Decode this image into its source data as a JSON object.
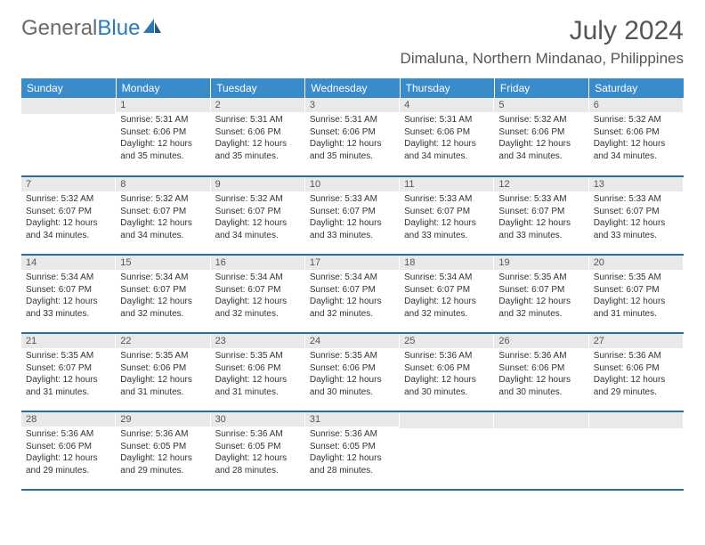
{
  "brand": {
    "part1": "General",
    "part2": "Blue"
  },
  "title": "July 2024",
  "location": "Dimaluna, Northern Mindanao, Philippines",
  "accent_color": "#3a8bc9",
  "border_color": "#2a6fa3",
  "daynum_bg": "#e9e9e9",
  "text_color": "#333333",
  "days_of_week": [
    "Sunday",
    "Monday",
    "Tuesday",
    "Wednesday",
    "Thursday",
    "Friday",
    "Saturday"
  ],
  "weeks": [
    [
      {
        "n": "",
        "sunrise": "",
        "sunset": "",
        "daylight": ""
      },
      {
        "n": "1",
        "sunrise": "Sunrise: 5:31 AM",
        "sunset": "Sunset: 6:06 PM",
        "daylight": "Daylight: 12 hours and 35 minutes."
      },
      {
        "n": "2",
        "sunrise": "Sunrise: 5:31 AM",
        "sunset": "Sunset: 6:06 PM",
        "daylight": "Daylight: 12 hours and 35 minutes."
      },
      {
        "n": "3",
        "sunrise": "Sunrise: 5:31 AM",
        "sunset": "Sunset: 6:06 PM",
        "daylight": "Daylight: 12 hours and 35 minutes."
      },
      {
        "n": "4",
        "sunrise": "Sunrise: 5:31 AM",
        "sunset": "Sunset: 6:06 PM",
        "daylight": "Daylight: 12 hours and 34 minutes."
      },
      {
        "n": "5",
        "sunrise": "Sunrise: 5:32 AM",
        "sunset": "Sunset: 6:06 PM",
        "daylight": "Daylight: 12 hours and 34 minutes."
      },
      {
        "n": "6",
        "sunrise": "Sunrise: 5:32 AM",
        "sunset": "Sunset: 6:06 PM",
        "daylight": "Daylight: 12 hours and 34 minutes."
      }
    ],
    [
      {
        "n": "7",
        "sunrise": "Sunrise: 5:32 AM",
        "sunset": "Sunset: 6:07 PM",
        "daylight": "Daylight: 12 hours and 34 minutes."
      },
      {
        "n": "8",
        "sunrise": "Sunrise: 5:32 AM",
        "sunset": "Sunset: 6:07 PM",
        "daylight": "Daylight: 12 hours and 34 minutes."
      },
      {
        "n": "9",
        "sunrise": "Sunrise: 5:32 AM",
        "sunset": "Sunset: 6:07 PM",
        "daylight": "Daylight: 12 hours and 34 minutes."
      },
      {
        "n": "10",
        "sunrise": "Sunrise: 5:33 AM",
        "sunset": "Sunset: 6:07 PM",
        "daylight": "Daylight: 12 hours and 33 minutes."
      },
      {
        "n": "11",
        "sunrise": "Sunrise: 5:33 AM",
        "sunset": "Sunset: 6:07 PM",
        "daylight": "Daylight: 12 hours and 33 minutes."
      },
      {
        "n": "12",
        "sunrise": "Sunrise: 5:33 AM",
        "sunset": "Sunset: 6:07 PM",
        "daylight": "Daylight: 12 hours and 33 minutes."
      },
      {
        "n": "13",
        "sunrise": "Sunrise: 5:33 AM",
        "sunset": "Sunset: 6:07 PM",
        "daylight": "Daylight: 12 hours and 33 minutes."
      }
    ],
    [
      {
        "n": "14",
        "sunrise": "Sunrise: 5:34 AM",
        "sunset": "Sunset: 6:07 PM",
        "daylight": "Daylight: 12 hours and 33 minutes."
      },
      {
        "n": "15",
        "sunrise": "Sunrise: 5:34 AM",
        "sunset": "Sunset: 6:07 PM",
        "daylight": "Daylight: 12 hours and 32 minutes."
      },
      {
        "n": "16",
        "sunrise": "Sunrise: 5:34 AM",
        "sunset": "Sunset: 6:07 PM",
        "daylight": "Daylight: 12 hours and 32 minutes."
      },
      {
        "n": "17",
        "sunrise": "Sunrise: 5:34 AM",
        "sunset": "Sunset: 6:07 PM",
        "daylight": "Daylight: 12 hours and 32 minutes."
      },
      {
        "n": "18",
        "sunrise": "Sunrise: 5:34 AM",
        "sunset": "Sunset: 6:07 PM",
        "daylight": "Daylight: 12 hours and 32 minutes."
      },
      {
        "n": "19",
        "sunrise": "Sunrise: 5:35 AM",
        "sunset": "Sunset: 6:07 PM",
        "daylight": "Daylight: 12 hours and 32 minutes."
      },
      {
        "n": "20",
        "sunrise": "Sunrise: 5:35 AM",
        "sunset": "Sunset: 6:07 PM",
        "daylight": "Daylight: 12 hours and 31 minutes."
      }
    ],
    [
      {
        "n": "21",
        "sunrise": "Sunrise: 5:35 AM",
        "sunset": "Sunset: 6:07 PM",
        "daylight": "Daylight: 12 hours and 31 minutes."
      },
      {
        "n": "22",
        "sunrise": "Sunrise: 5:35 AM",
        "sunset": "Sunset: 6:06 PM",
        "daylight": "Daylight: 12 hours and 31 minutes."
      },
      {
        "n": "23",
        "sunrise": "Sunrise: 5:35 AM",
        "sunset": "Sunset: 6:06 PM",
        "daylight": "Daylight: 12 hours and 31 minutes."
      },
      {
        "n": "24",
        "sunrise": "Sunrise: 5:35 AM",
        "sunset": "Sunset: 6:06 PM",
        "daylight": "Daylight: 12 hours and 30 minutes."
      },
      {
        "n": "25",
        "sunrise": "Sunrise: 5:36 AM",
        "sunset": "Sunset: 6:06 PM",
        "daylight": "Daylight: 12 hours and 30 minutes."
      },
      {
        "n": "26",
        "sunrise": "Sunrise: 5:36 AM",
        "sunset": "Sunset: 6:06 PM",
        "daylight": "Daylight: 12 hours and 30 minutes."
      },
      {
        "n": "27",
        "sunrise": "Sunrise: 5:36 AM",
        "sunset": "Sunset: 6:06 PM",
        "daylight": "Daylight: 12 hours and 29 minutes."
      }
    ],
    [
      {
        "n": "28",
        "sunrise": "Sunrise: 5:36 AM",
        "sunset": "Sunset: 6:06 PM",
        "daylight": "Daylight: 12 hours and 29 minutes."
      },
      {
        "n": "29",
        "sunrise": "Sunrise: 5:36 AM",
        "sunset": "Sunset: 6:05 PM",
        "daylight": "Daylight: 12 hours and 29 minutes."
      },
      {
        "n": "30",
        "sunrise": "Sunrise: 5:36 AM",
        "sunset": "Sunset: 6:05 PM",
        "daylight": "Daylight: 12 hours and 28 minutes."
      },
      {
        "n": "31",
        "sunrise": "Sunrise: 5:36 AM",
        "sunset": "Sunset: 6:05 PM",
        "daylight": "Daylight: 12 hours and 28 minutes."
      },
      {
        "n": "",
        "sunrise": "",
        "sunset": "",
        "daylight": ""
      },
      {
        "n": "",
        "sunrise": "",
        "sunset": "",
        "daylight": ""
      },
      {
        "n": "",
        "sunrise": "",
        "sunset": "",
        "daylight": ""
      }
    ]
  ]
}
